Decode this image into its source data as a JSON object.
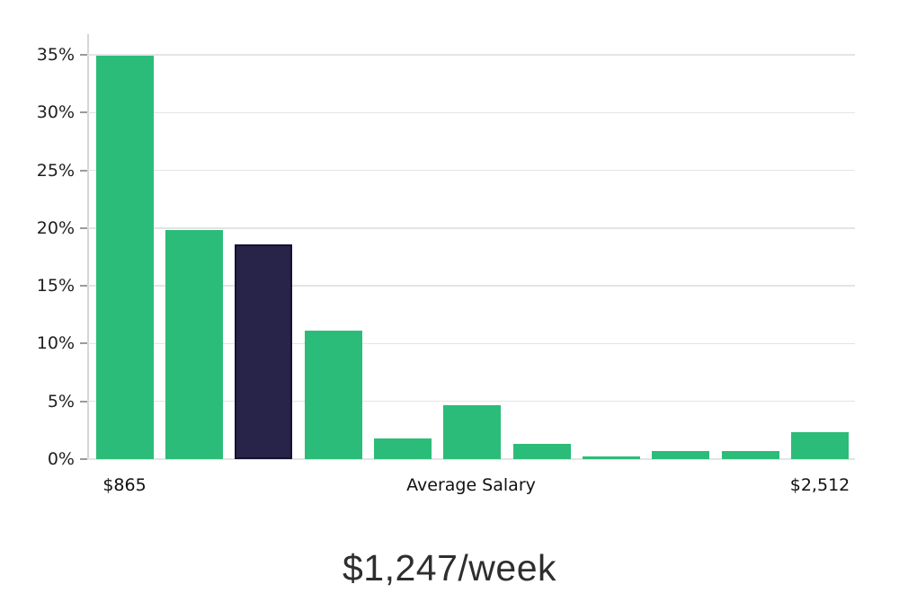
{
  "chart_data": {
    "type": "bar",
    "title": "",
    "caption": "$1,247/week",
    "x_axis": {
      "left_label": "$865",
      "center_label": "Average Salary",
      "right_label": "$2,512"
    },
    "ylabel": "",
    "xlabel": "",
    "ylim": [
      0,
      36.8
    ],
    "grid": "horizontal-only",
    "legend": "none",
    "bar_color": "#2cbc79",
    "highlight_color": "#282348",
    "highlight_border_color": "#171134",
    "highlight_index": 2,
    "values_pct": [
      34.9,
      19.8,
      18.6,
      11.1,
      1.8,
      4.7,
      1.3,
      0.25,
      0.7,
      0.7,
      2.35
    ],
    "yticks": [
      {
        "label": "0%",
        "value": 0
      },
      {
        "label": "5%",
        "value": 5
      },
      {
        "label": "10%",
        "value": 10
      },
      {
        "label": "15%",
        "value": 15
      },
      {
        "label": "20%",
        "value": 20
      },
      {
        "label": "25%",
        "value": 25
      },
      {
        "label": "30%",
        "value": 30
      },
      {
        "label": "35%",
        "value": 35
      }
    ]
  }
}
